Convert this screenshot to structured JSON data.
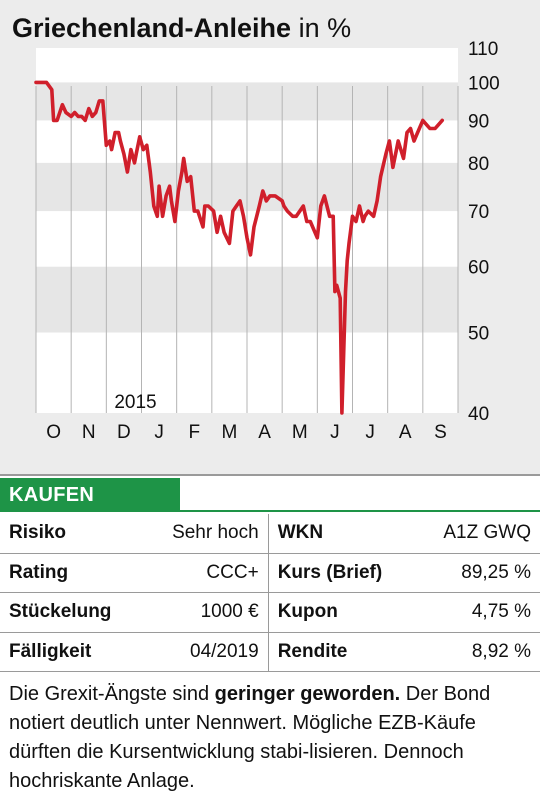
{
  "chart_data": {
    "type": "line",
    "title": "Griechenland-Anleihe",
    "unit": "in %",
    "year_label": "2015",
    "months": [
      "O",
      "N",
      "D",
      "J",
      "F",
      "M",
      "A",
      "M",
      "J",
      "J",
      "A",
      "S"
    ],
    "y_ticks": [
      110,
      100,
      90,
      80,
      70,
      60,
      50,
      40
    ],
    "ylim": [
      40,
      110
    ],
    "y_scale": "log",
    "grid_bands": [
      [
        90,
        100
      ],
      [
        70,
        80
      ],
      [
        50,
        60
      ]
    ],
    "line_color": "#d01f2b",
    "series": [
      {
        "x": [
          0.0,
          0.3,
          0.45,
          0.5,
          0.6,
          0.75,
          0.85,
          1.0,
          1.1,
          1.2,
          1.3,
          1.4,
          1.5,
          1.6,
          1.7,
          1.8,
          1.9,
          2.0,
          2.1,
          2.15,
          2.25,
          2.35,
          2.4,
          2.5,
          2.6,
          2.7,
          2.8,
          2.85,
          2.95,
          3.05,
          3.15,
          3.25,
          3.35,
          3.45,
          3.5,
          3.6,
          3.7,
          3.8,
          3.85,
          3.95,
          4.05,
          4.15,
          4.2,
          4.3,
          4.4,
          4.5,
          4.6,
          4.75,
          4.8,
          4.9,
          5.05,
          5.15,
          5.25,
          5.35,
          5.5,
          5.6,
          5.7,
          5.8,
          5.9,
          6.0,
          6.1,
          6.2,
          6.35,
          6.45,
          6.5,
          6.55,
          6.65,
          6.8,
          7.0,
          7.05,
          7.15,
          7.3,
          7.4,
          7.6,
          7.7,
          7.8,
          8.0,
          8.1,
          8.2,
          8.35,
          8.45,
          8.5,
          8.55,
          8.65,
          8.7,
          8.8,
          8.85,
          8.9,
          9.0,
          9.1,
          9.2,
          9.3,
          9.35,
          9.45,
          9.6,
          9.7,
          9.8,
          9.95,
          10.05,
          10.15,
          10.3,
          10.45,
          10.55,
          10.65,
          10.75,
          11.0,
          11.2,
          11.35,
          11.55
        ],
        "y": [
          100,
          100,
          98,
          90,
          90,
          94,
          92,
          91,
          92,
          91,
          91,
          90,
          93,
          91,
          92,
          95,
          95,
          84,
          85,
          83,
          87,
          87,
          85,
          82,
          78,
          83,
          80,
          82,
          86,
          83,
          84,
          78,
          71,
          69,
          75,
          69,
          73,
          75,
          72,
          68,
          74,
          78,
          81,
          76,
          77,
          70,
          70,
          67,
          71,
          71,
          70,
          66,
          69,
          66,
          64,
          70,
          71,
          72,
          69,
          65,
          62,
          67,
          71,
          74,
          73,
          72,
          73,
          73,
          72,
          71,
          70,
          69,
          69,
          71,
          68,
          68,
          65,
          71,
          73,
          69,
          69,
          56,
          57,
          55,
          40,
          56,
          61,
          64,
          69,
          68,
          71,
          68,
          69,
          70,
          69,
          72,
          77,
          82,
          85,
          79,
          85,
          81,
          87,
          88,
          85,
          90,
          88,
          88,
          90
        ]
      }
    ]
  },
  "verdict": "KAUFEN",
  "table": [
    [
      {
        "label": "Risiko",
        "value": "Sehr hoch"
      },
      {
        "label": "WKN",
        "value": "A1Z GWQ"
      }
    ],
    [
      {
        "label": "Rating",
        "value": "CCC+"
      },
      {
        "label": "Kurs (Brief)",
        "value": "89,25 %"
      }
    ],
    [
      {
        "label": "Stückelung",
        "value": "1000 €"
      },
      {
        "label": "Kupon",
        "value": "4,75 %"
      }
    ],
    [
      {
        "label": "Fälligkeit",
        "value": "04/2019"
      },
      {
        "label": "Rendite",
        "value": "8,92 %"
      }
    ]
  ],
  "text": {
    "part1": "Die Grexit-Ängste sind ",
    "bold": "geringer geworden.",
    "part2": " Der Bond notiert deutlich unter Nennwert. Mögliche EZB-Käufe dürften die Kursentwicklung stabi-lisieren. Dennoch hochriskante Anlage."
  }
}
